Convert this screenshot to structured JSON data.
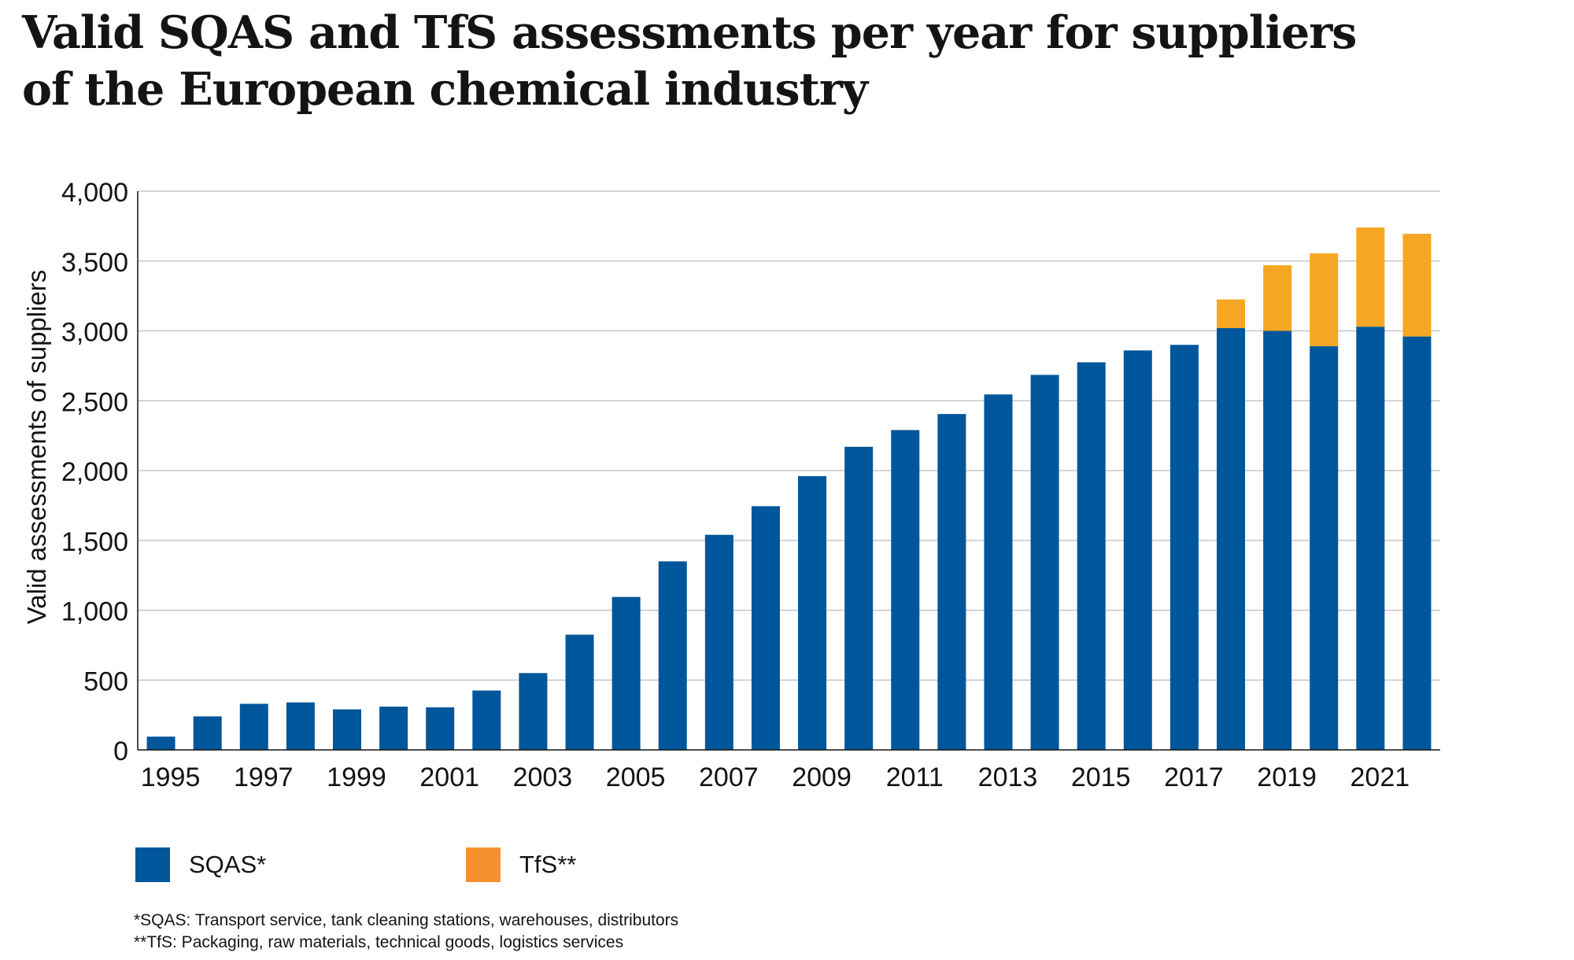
{
  "title_lines": [
    "Valid SQAS and TfS assessments per year for suppliers",
    "of the European chemical industry"
  ],
  "chart_data": {
    "type": "bar",
    "stacked": true,
    "title": "Valid SQAS and TfS assessments per year for suppliers of the European chemical industry",
    "xlabel": "",
    "ylabel": "Valid assessments of suppliers",
    "ylim": [
      0,
      4000
    ],
    "yticks": [
      0,
      500,
      1000,
      1500,
      2000,
      2500,
      3000,
      3500,
      4000
    ],
    "ytick_labels": [
      "0",
      "500",
      "1,000",
      "1,500",
      "2,000",
      "2,500",
      "3,000",
      "3,500",
      "4,000"
    ],
    "grid": true,
    "categories": [
      "1995",
      "1996",
      "1997",
      "1998",
      "1999",
      "2000",
      "2001",
      "2002",
      "2003",
      "2004",
      "2005",
      "2006",
      "2007",
      "2008",
      "2009",
      "2010",
      "2011",
      "2012",
      "2013",
      "2014",
      "2015",
      "2016",
      "2017",
      "2018",
      "2019",
      "2020",
      "2021",
      "2022"
    ],
    "xtick_labels": [
      "1995",
      "1997",
      "1999",
      "2001",
      "2003",
      "2005",
      "2007",
      "2009",
      "2011",
      "2013",
      "2015",
      "2017",
      "2019",
      "2021"
    ],
    "series": [
      {
        "name": "SQAS*",
        "color": "#00569A",
        "values": [
          95,
          240,
          330,
          340,
          290,
          310,
          305,
          425,
          550,
          825,
          1095,
          1350,
          1540,
          1745,
          1960,
          2170,
          2290,
          2405,
          2545,
          2685,
          2775,
          2860,
          2900,
          3020,
          3000,
          2890,
          3030,
          2960
        ]
      },
      {
        "name": "TfS**",
        "color": "#F5A623",
        "values": [
          0,
          0,
          0,
          0,
          0,
          0,
          0,
          0,
          0,
          0,
          0,
          0,
          0,
          0,
          0,
          0,
          0,
          0,
          0,
          0,
          0,
          0,
          0,
          205,
          470,
          665,
          710,
          735
        ]
      }
    ],
    "legend_position": "bottom-left"
  },
  "legend": {
    "sqas_label": "SQAS*",
    "tfs_label": "TfS**",
    "sqas_color": "#00569A",
    "tfs_color": "#F5922F"
  },
  "footnotes": {
    "sqas": "*SQAS: Transport service, tank cleaning stations, warehouses, distributors",
    "tfs": "**TfS: Packaging, raw materials, technical goods, logistics services"
  }
}
